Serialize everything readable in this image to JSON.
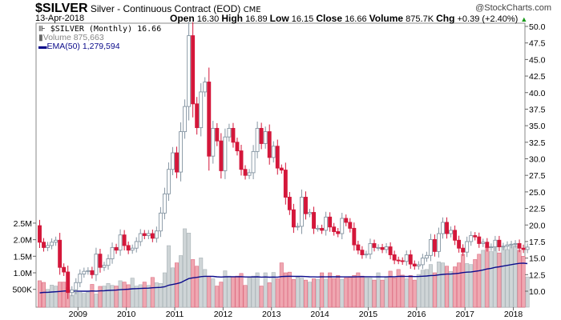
{
  "header": {
    "symbol": "$SILVER",
    "name": "Silver - Continuous Contract (EOD)",
    "exchange": "CME",
    "brand": "@StockCharts.com",
    "date": "13-Apr-2018",
    "open_label": "Open",
    "open": "16.30",
    "high_label": "High",
    "high": "16.89",
    "low_label": "Low",
    "low": "16.15",
    "close_label": "Close",
    "close": "16.66",
    "volume_label": "Volume",
    "volume": "875.7K",
    "chg_label": "Chg",
    "chg": "+0.39 (+2.40%)",
    "chg_arrow": "▲"
  },
  "legend": {
    "price": "$SILVER (Monthly) 16.66",
    "volume": "Volume 875,663",
    "ema": "EMA(50) 1,279,594"
  },
  "colors": {
    "down": "#d4173a",
    "up_stroke": "#8595a2",
    "vol_up": "#cfd5d7",
    "vol_up_stroke": "#aab4b8",
    "vol_down": "#efa7b1",
    "vol_down_stroke": "#de6c80",
    "ema": "#0c0c8c"
  },
  "chart_data": {
    "type": "candlestick",
    "start_month": "2008-03",
    "interval": "monthly",
    "first_open": 19.9,
    "close": [
      17.4,
      16.6,
      16.9,
      17.4,
      17.7,
      13.6,
      12.9,
      9.8,
      10.2,
      11.3,
      12.6,
      13.0,
      13.1,
      12.5,
      15.6,
      13.6,
      13.9,
      14.9,
      16.6,
      16.2,
      18.5,
      16.9,
      16.2,
      16.5,
      17.5,
      18.7,
      18.4,
      18.7,
      18.0,
      19.1,
      21.8,
      24.7,
      28.4,
      30.9,
      28.0,
      34.1,
      37.9,
      48.6,
      38.3,
      34.7,
      40.1,
      41.6,
      30.4,
      34.6,
      32.7,
      28.2,
      33.3,
      34.6,
      32.5,
      31.2,
      28.4,
      27.5,
      27.9,
      31.1,
      34.6,
      32.3,
      34.1,
      30.2,
      31.9,
      28.6,
      28.3,
      24.2,
      22.3,
      19.7,
      19.8,
      24.2,
      21.7,
      21.9,
      19.5,
      19.5,
      19.2,
      21.2,
      19.7,
      19.0,
      18.7,
      21.0,
      20.4,
      19.5,
      17.0,
      16.2,
      15.5,
      15.6,
      17.2,
      16.6,
      16.6,
      16.3,
      16.7,
      15.5,
      14.7,
      14.6,
      14.5,
      15.5,
      14.1,
      13.8,
      14.0,
      15.0,
      15.4,
      17.8,
      16.0,
      18.7,
      20.4,
      18.7,
      19.2,
      17.7,
      16.5,
      15.9,
      17.5,
      18.4,
      18.2,
      17.2,
      17.4,
      16.6,
      16.7,
      17.7,
      16.7,
      16.8,
      17.0,
      17.1,
      17.2,
      16.5,
      16.3,
      16.66
    ],
    "volume_k": [
      760,
      710,
      500,
      630,
      600,
      720,
      720,
      560,
      320,
      420,
      440,
      380,
      420,
      650,
      360,
      590,
      600,
      680,
      620,
      600,
      760,
      720,
      640,
      840,
      600,
      640,
      720,
      620,
      860,
      700,
      680,
      1000,
      1820,
      1150,
      1300,
      1520,
      2330,
      2200,
      1400,
      1200,
      1450,
      1100,
      900,
      820,
      600,
      720,
      1060,
      900,
      870,
      900,
      980,
      620,
      850,
      900,
      1000,
      600,
      1000,
      700,
      1010,
      820,
      1300,
      1000,
      1020,
      800,
      870,
      840,
      780,
      720,
      820,
      800,
      1000,
      810,
      1000,
      830,
      920,
      800,
      850,
      860,
      920,
      1000,
      900,
      850,
      850,
      780,
      1000,
      780,
      860,
      1050,
      850,
      1100,
      930,
      820,
      920,
      780,
      950,
      1080,
      1100,
      1250,
      1000,
      1330,
      1300,
      1200,
      1040,
      1180,
      1300,
      1560,
      1280,
      1250,
      1400,
      1560,
      1680,
      1800,
      1640,
      1850,
      1600,
      1780,
      1700,
      1800,
      1820,
      1680,
      1500,
      876
    ],
    "ema_period": 50,
    "ema_seed_k": 380,
    "price_axis": {
      "range": [
        7.5,
        50.5
      ],
      "ticks": [
        "50.0",
        "47.5",
        "45.0",
        "42.5",
        "40.0",
        "37.5",
        "35.0",
        "32.5",
        "30.0",
        "27.5",
        "25.0",
        "22.5",
        "20.0",
        "17.5",
        "15.0",
        "12.5",
        "10.0"
      ]
    },
    "volume_axis": {
      "ticks": [
        {
          "v": 500,
          "label": "500K"
        },
        {
          "v": 1000,
          "label": "1.0M"
        },
        {
          "v": 1500,
          "label": "1.5M"
        },
        {
          "v": 2000,
          "label": "2.0M"
        },
        {
          "v": 2500,
          "label": "2.5M"
        }
      ]
    },
    "x_ticks": [
      "2009",
      "2010",
      "2011",
      "2012",
      "2013",
      "2014",
      "2015",
      "2016",
      "2017",
      "2018"
    ]
  }
}
